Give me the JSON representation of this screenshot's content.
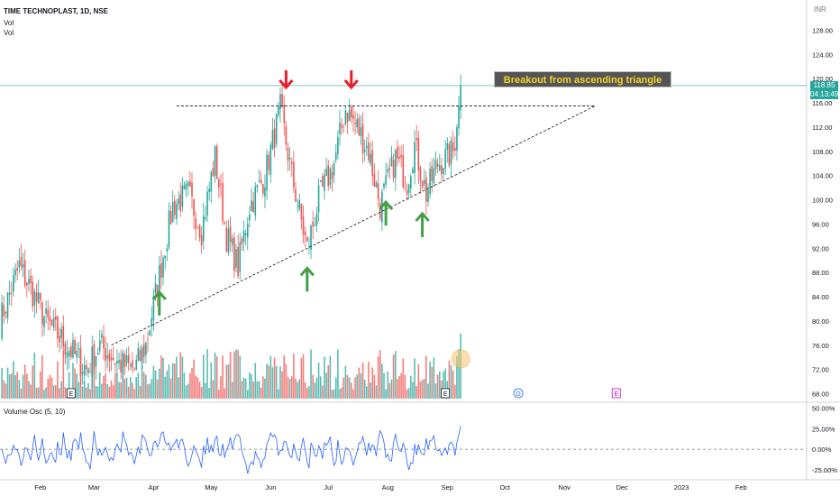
{
  "header": {
    "symbol_line": "TIME TECHNOPLAST, 1D, NSE",
    "vol_1": "Vol",
    "vol_2": "Vol"
  },
  "currency": "INR",
  "price_tag": {
    "price": "118.85",
    "countdown": "04:13:49"
  },
  "annotation": "Breakout from ascending triangle",
  "oscillator": {
    "label": "Volume Osc (5, 10)"
  },
  "event_markers": [
    "E",
    "E",
    "D",
    "E"
  ],
  "colors": {
    "up": "#26a69a",
    "down": "#ef5350",
    "osc_line": "#2962ff",
    "arrow_down": "#e91e2d",
    "arrow_up": "#43a047",
    "price_line": "#26a69a"
  },
  "chart_data": {
    "type": "candlestick",
    "title": "TIME TECHNOPLAST, 1D, NSE",
    "price_axis": {
      "ticks": [
        "128.00",
        "124.00",
        "120.00",
        "116.00",
        "112.00",
        "108.00",
        "104.00",
        "100.00",
        "96.00",
        "92.00",
        "88.00",
        "84.00",
        "80.00",
        "76.00",
        "72.00",
        "68.00"
      ],
      "range": [
        66,
        130
      ]
    },
    "osc_axis": {
      "ticks": [
        "50.00%",
        "25.00%",
        "0.00%",
        "-25.00%"
      ],
      "range": [
        -35,
        55
      ]
    },
    "x_ticks": [
      "Feb",
      "Mar",
      "Apr",
      "May",
      "Jun",
      "Jul",
      "Aug",
      "Sep",
      "Oct",
      "Nov",
      "Dec",
      "2023",
      "Feb"
    ],
    "x_tick_days": [
      21,
      49,
      80,
      110,
      141,
      171,
      202,
      233,
      263,
      294,
      324,
      355,
      386
    ],
    "last_day": 240,
    "key_points": [
      {
        "day": 0,
        "close": 80
      },
      {
        "day": 10,
        "close": 89
      },
      {
        "day": 18,
        "close": 84
      },
      {
        "day": 24,
        "close": 80
      },
      {
        "day": 32,
        "close": 77
      },
      {
        "day": 45,
        "close": 72
      },
      {
        "day": 52,
        "close": 76
      },
      {
        "day": 62,
        "close": 73
      },
      {
        "day": 70,
        "close": 72
      },
      {
        "day": 76,
        "close": 76
      },
      {
        "day": 82,
        "close": 86
      },
      {
        "day": 90,
        "close": 99
      },
      {
        "day": 98,
        "close": 101
      },
      {
        "day": 105,
        "close": 95
      },
      {
        "day": 112,
        "close": 107
      },
      {
        "day": 118,
        "close": 94
      },
      {
        "day": 124,
        "close": 89
      },
      {
        "day": 130,
        "close": 99
      },
      {
        "day": 138,
        "close": 104
      },
      {
        "day": 146,
        "close": 115
      },
      {
        "day": 152,
        "close": 104
      },
      {
        "day": 160,
        "close": 92
      },
      {
        "day": 166,
        "close": 100
      },
      {
        "day": 174,
        "close": 106
      },
      {
        "day": 180,
        "close": 115
      },
      {
        "day": 186,
        "close": 112
      },
      {
        "day": 192,
        "close": 108
      },
      {
        "day": 198,
        "close": 99
      },
      {
        "day": 206,
        "close": 107
      },
      {
        "day": 212,
        "close": 103
      },
      {
        "day": 216,
        "close": 109
      },
      {
        "day": 222,
        "close": 101
      },
      {
        "day": 228,
        "close": 106
      },
      {
        "day": 233,
        "close": 107
      },
      {
        "day": 236,
        "close": 108
      },
      {
        "day": 238,
        "close": 112
      },
      {
        "day": 240,
        "close": 118.85
      }
    ],
    "trendlines": [
      {
        "name": "resistance",
        "from": {
          "day": 92,
          "price": 115.5
        },
        "to": {
          "day": 310,
          "price": 115.5
        }
      },
      {
        "name": "support",
        "from": {
          "day": 58,
          "price": 76
        },
        "to": {
          "day": 310,
          "price": 115.5
        }
      }
    ],
    "arrows_down_days": [
      149,
      183
    ],
    "arrows_up_days": [
      83,
      160,
      201,
      220
    ]
  }
}
